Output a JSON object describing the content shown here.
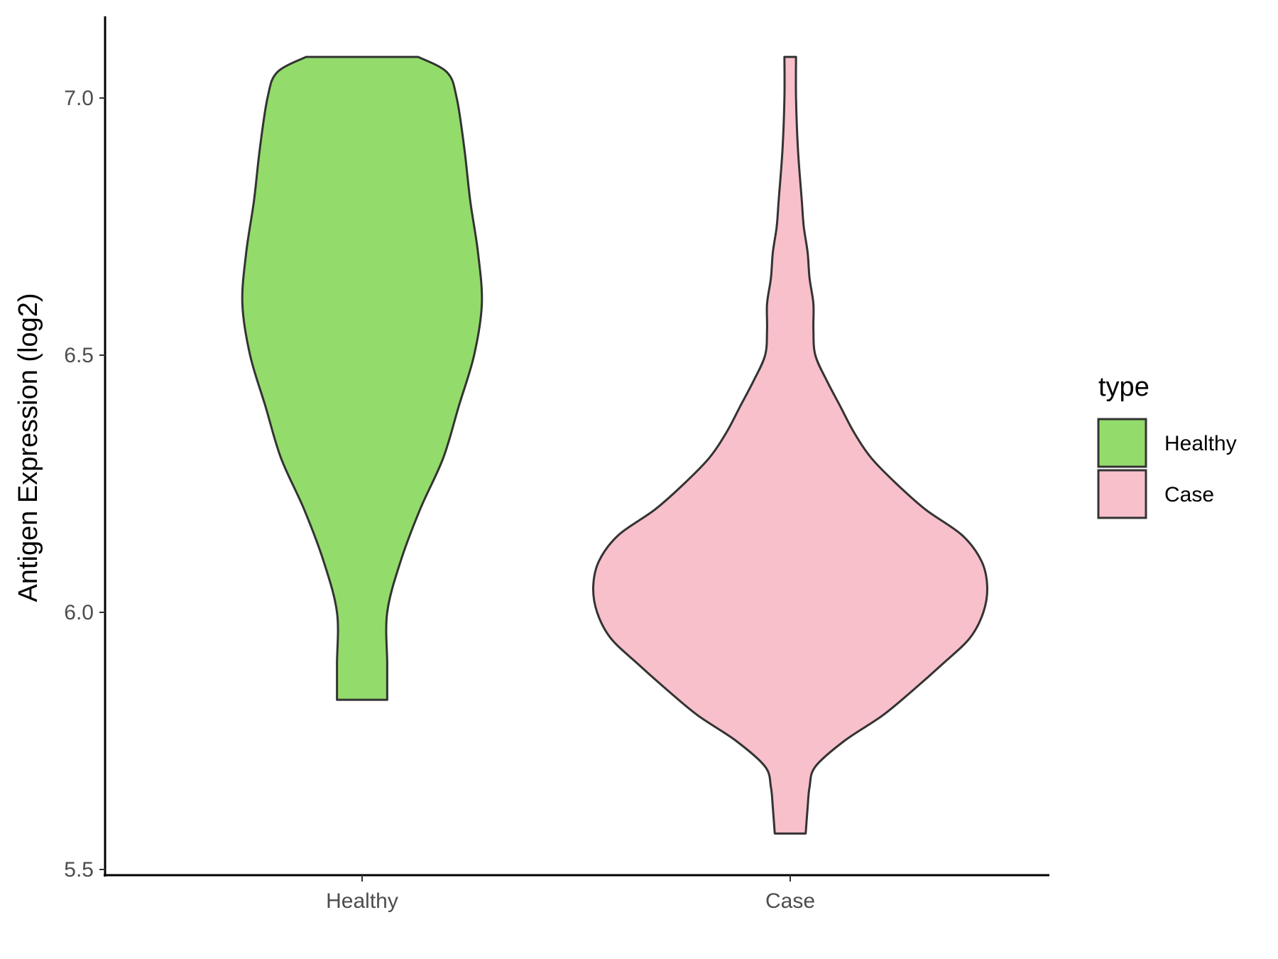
{
  "chart_data": {
    "type": "violin",
    "xlabel": "",
    "ylabel": "Antigen Expression (log2)",
    "ylim": [
      5.5,
      7.15
    ],
    "yticks": [
      5.5,
      6.0,
      6.5,
      7.0
    ],
    "ytick_labels": [
      "5.5",
      "6.0",
      "6.5",
      "7.0"
    ],
    "categories": [
      "Healthy",
      "Case"
    ],
    "legend": {
      "title": "type",
      "position": "right",
      "entries": [
        {
          "label": "Healthy",
          "color": "#93dc6b"
        },
        {
          "label": "Case",
          "color": "#f8c0cb"
        }
      ]
    },
    "grid": false,
    "outline_color": "#333333",
    "series": [
      {
        "category": "Healthy",
        "color": "#93dc6b",
        "min": 5.83,
        "max": 7.08,
        "density": [
          [
            5.83,
            0.13
          ],
          [
            5.9,
            0.13
          ],
          [
            6.0,
            0.13
          ],
          [
            6.1,
            0.2
          ],
          [
            6.2,
            0.3
          ],
          [
            6.3,
            0.42
          ],
          [
            6.4,
            0.5
          ],
          [
            6.5,
            0.58
          ],
          [
            6.6,
            0.62
          ],
          [
            6.7,
            0.6
          ],
          [
            6.8,
            0.56
          ],
          [
            6.9,
            0.53
          ],
          [
            7.0,
            0.49
          ],
          [
            7.05,
            0.44
          ],
          [
            7.08,
            0.29
          ]
        ]
      },
      {
        "category": "Case",
        "color": "#f8c0cb",
        "min": 5.57,
        "max": 7.08,
        "density": [
          [
            5.57,
            0.08
          ],
          [
            5.62,
            0.09
          ],
          [
            5.66,
            0.1
          ],
          [
            5.7,
            0.13
          ],
          [
            5.75,
            0.28
          ],
          [
            5.8,
            0.48
          ],
          [
            5.85,
            0.64
          ],
          [
            5.9,
            0.79
          ],
          [
            5.95,
            0.93
          ],
          [
            6.0,
            1.0
          ],
          [
            6.05,
            1.02
          ],
          [
            6.1,
            0.99
          ],
          [
            6.15,
            0.89
          ],
          [
            6.2,
            0.7
          ],
          [
            6.25,
            0.55
          ],
          [
            6.3,
            0.42
          ],
          [
            6.35,
            0.33
          ],
          [
            6.4,
            0.26
          ],
          [
            6.45,
            0.19
          ],
          [
            6.5,
            0.13
          ],
          [
            6.55,
            0.12
          ],
          [
            6.6,
            0.12
          ],
          [
            6.65,
            0.1
          ],
          [
            6.7,
            0.09
          ],
          [
            6.75,
            0.07
          ],
          [
            6.8,
            0.06
          ],
          [
            6.9,
            0.04
          ],
          [
            7.0,
            0.03
          ],
          [
            7.08,
            0.03
          ]
        ]
      }
    ]
  }
}
